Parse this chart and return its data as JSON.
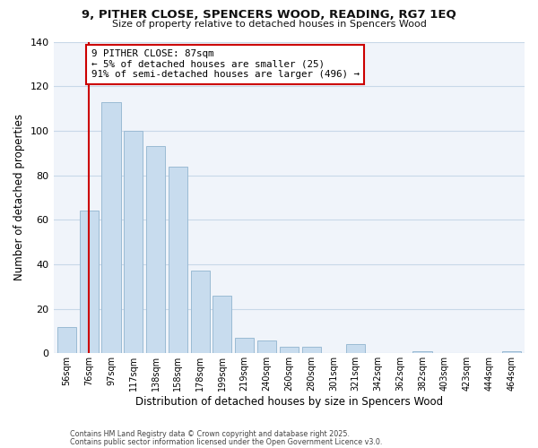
{
  "title": "9, PITHER CLOSE, SPENCERS WOOD, READING, RG7 1EQ",
  "subtitle": "Size of property relative to detached houses in Spencers Wood",
  "xlabel": "Distribution of detached houses by size in Spencers Wood",
  "ylabel": "Number of detached properties",
  "bar_labels": [
    "56sqm",
    "76sqm",
    "97sqm",
    "117sqm",
    "138sqm",
    "158sqm",
    "178sqm",
    "199sqm",
    "219sqm",
    "240sqm",
    "260sqm",
    "280sqm",
    "301sqm",
    "321sqm",
    "342sqm",
    "362sqm",
    "382sqm",
    "403sqm",
    "423sqm",
    "444sqm",
    "464sqm"
  ],
  "bar_values": [
    12,
    64,
    113,
    100,
    93,
    84,
    37,
    26,
    7,
    6,
    3,
    3,
    0,
    4,
    0,
    0,
    1,
    0,
    0,
    0,
    1
  ],
  "bar_color": "#c8dcee",
  "bar_edge_color": "#9bbbd4",
  "ylim": [
    0,
    140
  ],
  "yticks": [
    0,
    20,
    40,
    60,
    80,
    100,
    120,
    140
  ],
  "vline_x": 1,
  "vline_color": "#cc0000",
  "annotation_title": "9 PITHER CLOSE: 87sqm",
  "annotation_line1": "← 5% of detached houses are smaller (25)",
  "annotation_line2": "91% of semi-detached houses are larger (496) →",
  "footer1": "Contains HM Land Registry data © Crown copyright and database right 2025.",
  "footer2": "Contains public sector information licensed under the Open Government Licence v3.0.",
  "background_color": "#ffffff",
  "plot_bg_color": "#f0f4fa",
  "grid_color": "#c8d8e8"
}
